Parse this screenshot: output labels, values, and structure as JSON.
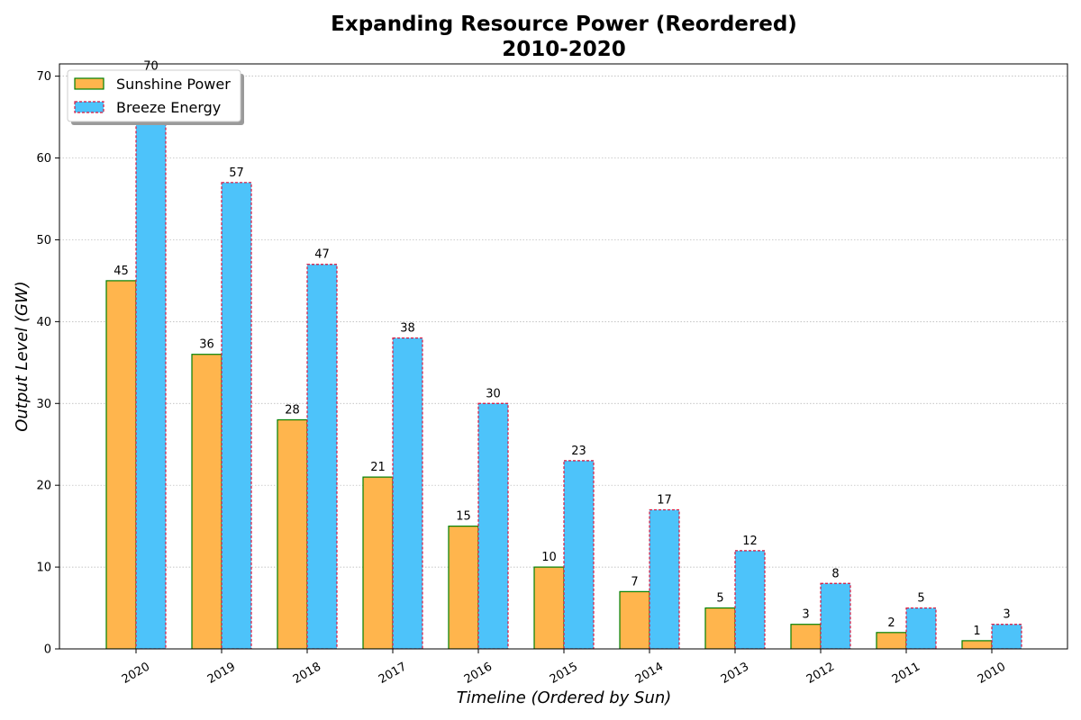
{
  "chart_data": {
    "type": "bar",
    "title": "Expanding Resource Power (Reordered)",
    "subtitle": "2010-2020",
    "xlabel": "Timeline (Ordered by Sun)",
    "ylabel": "Output Level (GW)",
    "categories": [
      "2020",
      "2019",
      "2018",
      "2017",
      "2016",
      "2015",
      "2014",
      "2013",
      "2012",
      "2011",
      "2010"
    ],
    "series": [
      {
        "name": "Sunshine Power",
        "values": [
          45,
          36,
          28,
          21,
          15,
          10,
          7,
          5,
          3,
          2,
          1
        ],
        "fill": "#ffb54d",
        "stroke": "#008000",
        "dashed": false
      },
      {
        "name": "Breeze Energy",
        "values": [
          70,
          57,
          47,
          38,
          30,
          23,
          17,
          12,
          8,
          5,
          3
        ],
        "fill": "#4dc3fa",
        "stroke": "#dc143c",
        "dashed": true
      }
    ],
    "ylim": [
      0,
      71.5
    ],
    "yticks": [
      0,
      10,
      20,
      30,
      40,
      50,
      60,
      70
    ],
    "grid": "y-dotted",
    "legend_position": "top-left"
  }
}
